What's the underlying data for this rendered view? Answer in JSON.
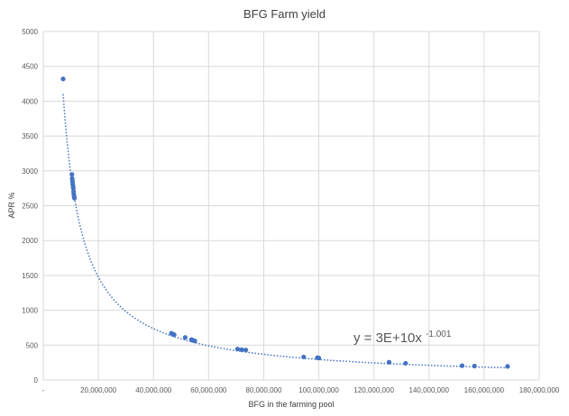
{
  "chart_data": {
    "type": "scatter",
    "title": "BFG Farm yield",
    "xlabel": "BFG in the farming pool",
    "ylabel": "APR %",
    "xlim": [
      0,
      180000000
    ],
    "ylim": [
      0,
      5000
    ],
    "x_ticks": [
      0,
      20000000,
      40000000,
      60000000,
      80000000,
      100000000,
      120000000,
      140000000,
      160000000,
      180000000
    ],
    "x_tick_labels": [
      "-",
      "20,000,000",
      "40,000,000",
      "60,000,000",
      "80,000,000",
      "100,000,000",
      "120,000,000",
      "140,000,000",
      "160,000,000",
      "180,000,000"
    ],
    "y_ticks": [
      0,
      500,
      1000,
      1500,
      2000,
      2500,
      3000,
      3500,
      4000,
      4500,
      5000
    ],
    "y_tick_labels": [
      "0",
      "500",
      "1000",
      "1500",
      "2000",
      "2500",
      "3000",
      "3500",
      "4000",
      "4500",
      "5000"
    ],
    "grid": true,
    "series": [
      {
        "color": "#4472C4",
        "x": [
          7200000,
          10400000,
          10500000,
          10600000,
          10700000,
          10800000,
          10900000,
          11000000,
          11100000,
          11200000,
          11300000,
          46500000,
          47000000,
          47500000,
          51500000,
          53800000,
          54200000,
          55000000,
          70500000,
          72000000,
          73500000,
          94500000,
          99500000,
          100000000,
          125500000,
          131500000,
          152000000,
          156500000,
          168500000
        ],
        "y": [
          4320,
          2950,
          2890,
          2850,
          2810,
          2780,
          2750,
          2700,
          2660,
          2630,
          2610,
          670,
          660,
          650,
          610,
          580,
          570,
          560,
          445,
          435,
          430,
          330,
          320,
          315,
          255,
          240,
          205,
          200,
          195
        ]
      }
    ],
    "trendline": {
      "type": "power",
      "coefficient": 30000000000,
      "exponent": -1.001,
      "label_main": "y = 3E+10x",
      "label_exponent": "-1.001",
      "color": "#4472C4"
    }
  }
}
